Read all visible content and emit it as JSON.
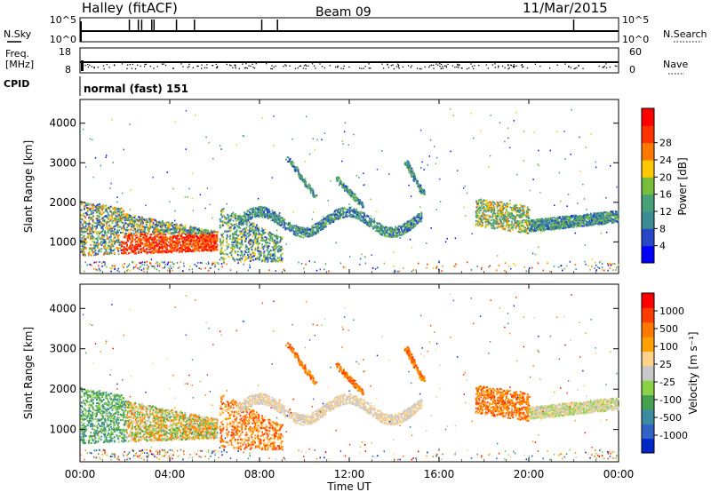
{
  "header": {
    "station": "Halley (fitACF)",
    "beam": "Beam 09",
    "date": "11/Mar/2015"
  },
  "colors": {
    "power_scale": [
      "#0000ff",
      "#2846c8",
      "#3c8c96",
      "#46a078",
      "#78be3c",
      "#ffc800",
      "#ff7800",
      "#ff3200",
      "#ff0000"
    ],
    "velocity_scale": [
      "#ff0000",
      "#ff3c00",
      "#ff7800",
      "#ffa000",
      "#ffd28c",
      "#c8c8c8",
      "#8cd246",
      "#46a050",
      "#3c8ca0",
      "#3264c8",
      "#0028c8"
    ],
    "axis": "#000000"
  },
  "top_panels": {
    "nsky_label": "N.Sky",
    "nsearch_label": "N.Search",
    "nsky_ticks": [
      "10^5",
      "10^0"
    ],
    "nsearch_ticks": [
      "10^5",
      "10^0"
    ],
    "freq_label_1": "Freq.",
    "freq_label_2": "[MHz]",
    "freq_ticks": [
      "18",
      "8"
    ],
    "nave_label": "Nave",
    "nave_ticks": [
      "60",
      "0"
    ],
    "cpid_label": "CPID",
    "cpid_text": "normal (fast) 151"
  },
  "chart_data": [
    {
      "type": "heatmap",
      "name": "power",
      "ylabel": "Slant Range [km]",
      "y_ticks": [
        1000,
        2000,
        3000,
        4000
      ],
      "ylim": [
        200,
        4600
      ],
      "colorbar_label": "Power [dB]",
      "colorbar_ticks": [
        4,
        8,
        12,
        16,
        20,
        24,
        28
      ],
      "colorbar_range": [
        0,
        32
      ]
    },
    {
      "type": "heatmap",
      "name": "velocity",
      "ylabel": "Slant Range [km]",
      "y_ticks": [
        1000,
        2000,
        3000,
        4000
      ],
      "ylim": [
        200,
        4600
      ],
      "colorbar_label": "Velocity [m s⁻¹]",
      "colorbar_ticks": [
        "1000",
        "500",
        "100",
        "25",
        "-25",
        "-100",
        "-500",
        "-1000"
      ]
    }
  ],
  "x_axis": {
    "label": "Time UT",
    "ticks": [
      "00:00",
      "04:00",
      "08:00",
      "12:00",
      "16:00",
      "20:00",
      "00:00"
    ],
    "hours": [
      0,
      4,
      8,
      12,
      16,
      20,
      24
    ]
  }
}
